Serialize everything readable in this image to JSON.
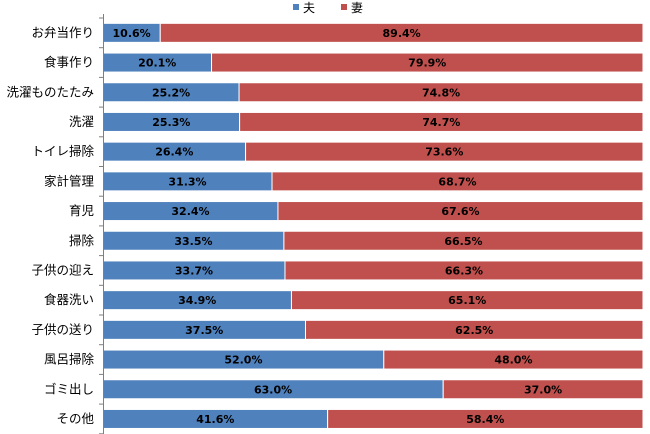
{
  "chart_data": {
    "type": "bar",
    "orientation": "horizontal",
    "stacked": true,
    "percent": true,
    "title": "",
    "xlabel": "",
    "ylabel": "",
    "xlim": [
      0,
      100
    ],
    "grid": false,
    "legend_position": "top",
    "categories": [
      "お弁当作り",
      "食事作り",
      "洗濯ものたたみ",
      "洗濯",
      "トイレ掃除",
      "家計管理",
      "育児",
      "掃除",
      "子供の迎え",
      "食器洗い",
      "子供の送り",
      "風呂掃除",
      "ゴミ出し",
      "その他"
    ],
    "series": [
      {
        "name": "夫",
        "color": "#4f81bd",
        "values": [
          10.6,
          20.1,
          25.2,
          25.3,
          26.4,
          31.3,
          32.4,
          33.5,
          33.7,
          34.9,
          37.5,
          52.0,
          63.0,
          41.6
        ],
        "labels": [
          "10.6%",
          "20.1%",
          "25.2%",
          "25.3%",
          "26.4%",
          "31.3%",
          "32.4%",
          "33.5%",
          "33.7%",
          "34.9%",
          "37.5%",
          "52.0%",
          "63.0%",
          "41.6%"
        ]
      },
      {
        "name": "妻",
        "color": "#c0504d",
        "values": [
          89.4,
          79.9,
          74.8,
          74.7,
          73.6,
          68.7,
          67.6,
          66.5,
          66.3,
          65.1,
          62.5,
          48.0,
          37.0,
          58.4
        ],
        "labels": [
          "89.4%",
          "79.9%",
          "74.8%",
          "74.7%",
          "73.6%",
          "68.7%",
          "67.6%",
          "66.5%",
          "66.3%",
          "65.1%",
          "62.5%",
          "48.0%",
          "37.0%",
          "58.4%"
        ]
      }
    ]
  }
}
